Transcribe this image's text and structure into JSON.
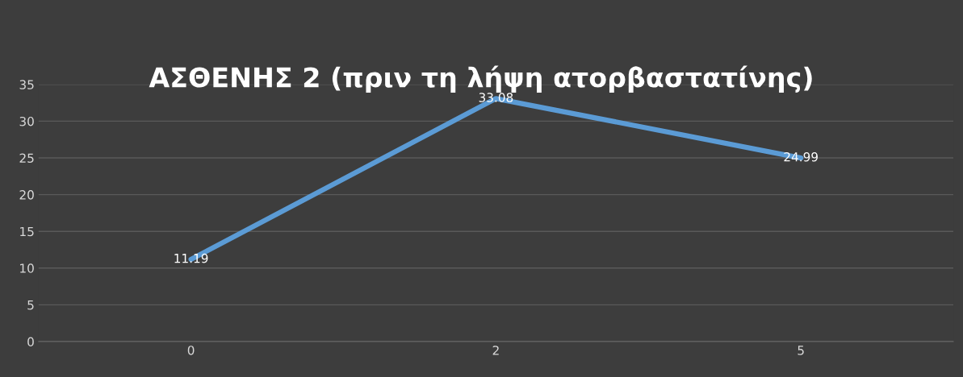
{
  "chart_data": {
    "type": "line",
    "title": "ΑΣΘΕΝΗΣ 2 (πριν τη λήψη ατορβαστατίνης)",
    "categories": [
      "0",
      "2",
      "5"
    ],
    "series": [
      {
        "color": "#5b9bd5",
        "values": [
          11.19,
          33.08,
          24.99
        ]
      }
    ],
    "ylim": [
      0,
      35
    ],
    "yticks": [
      0,
      5,
      10,
      15,
      20,
      25,
      30,
      35
    ],
    "grid": "y",
    "marker": "none",
    "line_style": "solid",
    "data_labels": true
  }
}
